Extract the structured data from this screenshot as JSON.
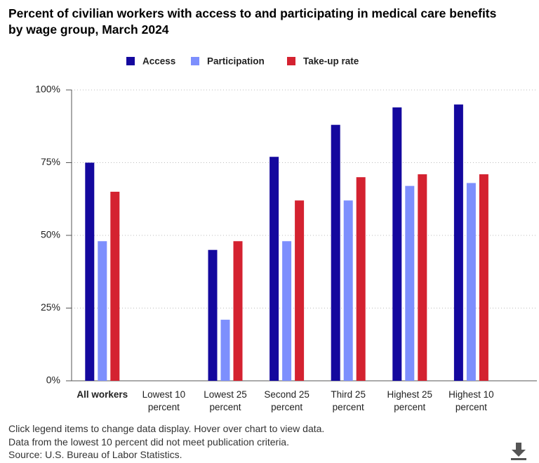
{
  "chart_data": {
    "type": "bar",
    "title": "Percent of civilian workers with access to and participating in medical care benefits by wage group, March 2024",
    "categories": [
      "All workers",
      "Lowest 10 percent",
      "Lowest 25 percent",
      "Second 25 percent",
      "Third 25 percent",
      "Highest 25 percent",
      "Highest 10 percent"
    ],
    "series": [
      {
        "name": "Access",
        "color": "#14089e",
        "values": [
          75,
          null,
          45,
          77,
          88,
          94,
          95
        ]
      },
      {
        "name": "Participation",
        "color": "#7d8ffd",
        "values": [
          48,
          null,
          21,
          48,
          62,
          67,
          68
        ]
      },
      {
        "name": "Take-up rate",
        "color": "#d42230",
        "values": [
          65,
          null,
          48,
          62,
          70,
          71,
          71
        ]
      }
    ],
    "ylim": [
      0,
      100
    ],
    "yticks": [
      {
        "value": 0,
        "label": "0%"
      },
      {
        "value": 25,
        "label": "25%"
      },
      {
        "value": 50,
        "label": "50%"
      },
      {
        "value": 75,
        "label": "75%"
      },
      {
        "value": 100,
        "label": "100%"
      }
    ],
    "grid": true,
    "legend": "top",
    "notes": [
      "Click legend items to change data display. Hover over chart to view data.",
      "Data from the lowest 10 percent did not meet publication criteria.",
      "Source: U.S. Bureau of Labor Statistics."
    ]
  }
}
